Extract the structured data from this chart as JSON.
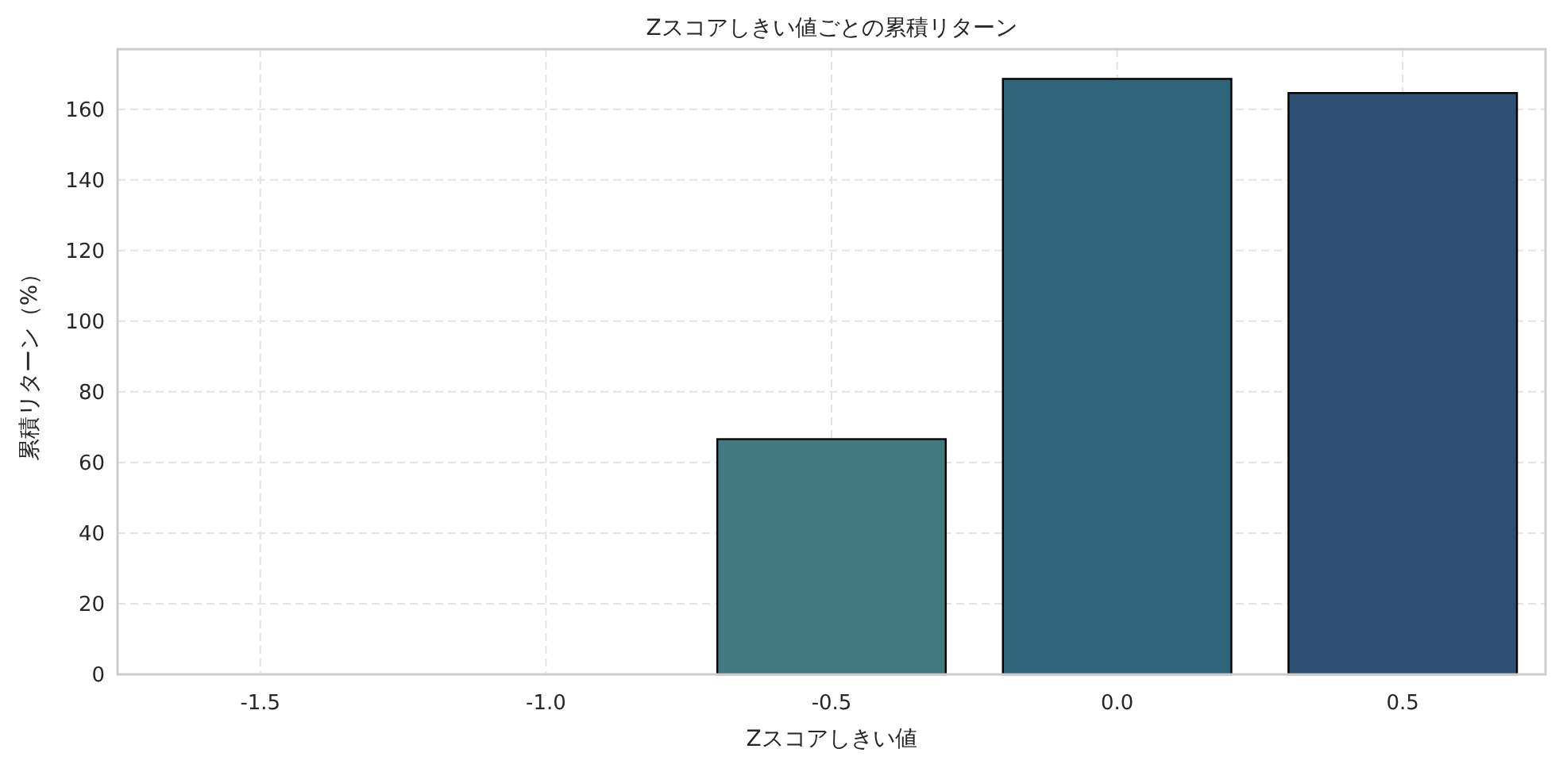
{
  "chart_data": {
    "type": "bar",
    "title": "Zスコアしきい値ごとの累積リターン",
    "xlabel": "Zスコアしきい値",
    "ylabel": "累積リターン（%）",
    "categories": [
      "-1.5",
      "-1.0",
      "-0.5",
      "0.0",
      "0.5"
    ],
    "values": [
      null,
      null,
      66.6,
      168.6,
      164.6
    ],
    "colors": [
      null,
      null,
      "#3f7b81",
      "#2d657a",
      "#2e5074"
    ],
    "ylim": [
      0,
      177
    ],
    "yticks": [
      0,
      20,
      40,
      60,
      80,
      100,
      120,
      140,
      160
    ],
    "grid": true
  }
}
